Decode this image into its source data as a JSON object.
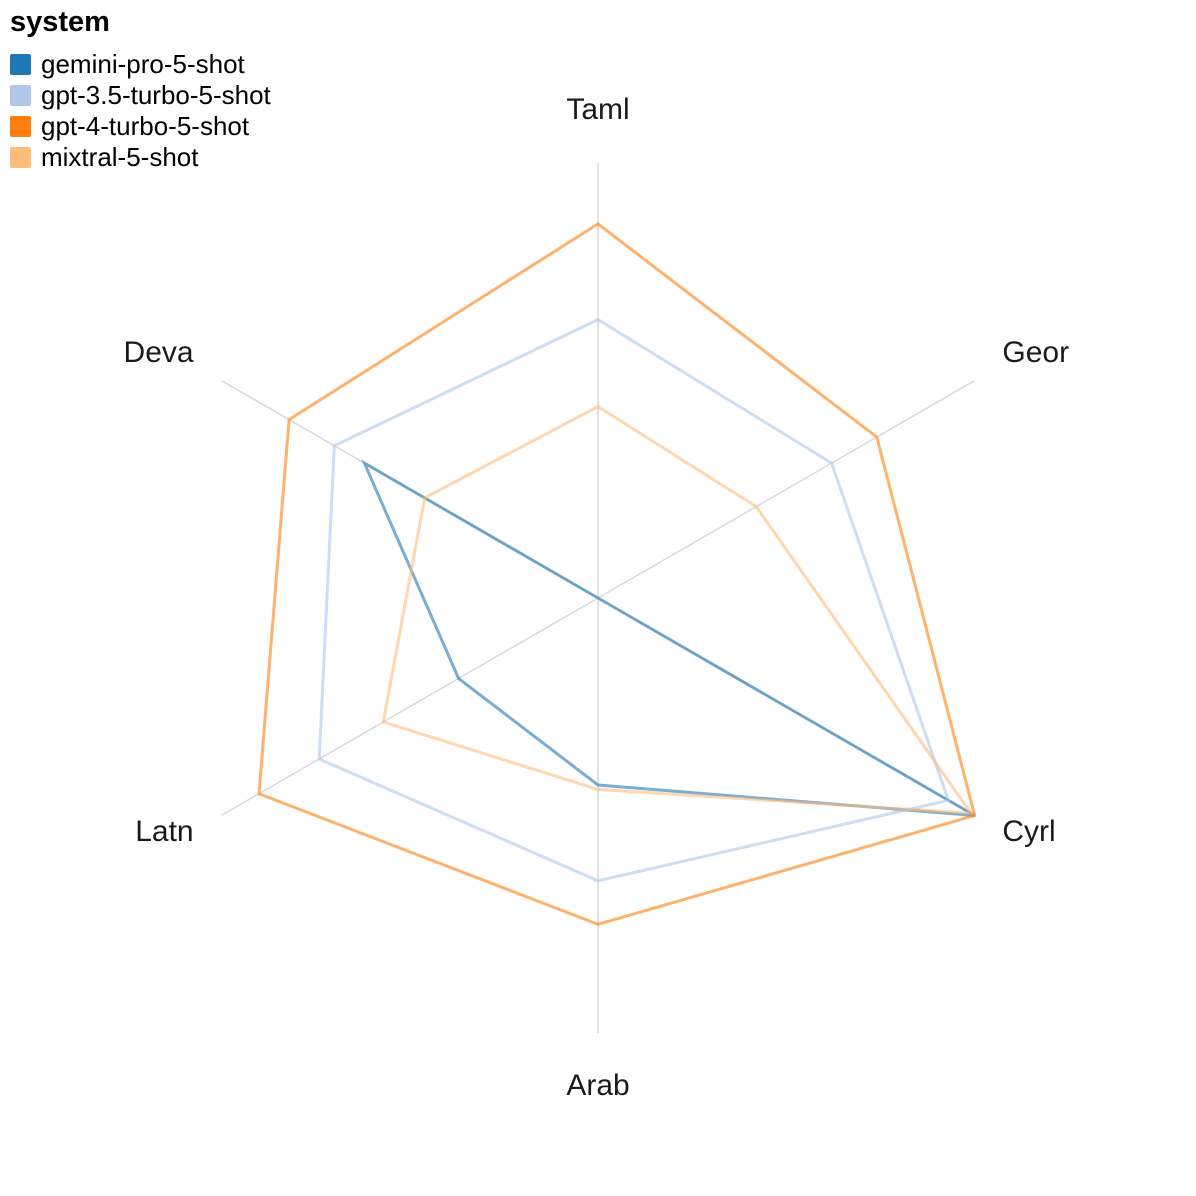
{
  "legend": {
    "title": "system",
    "items": [
      {
        "label": "gemini-pro-5-shot",
        "color": "#1f77b4"
      },
      {
        "label": "gpt-3.5-turbo-5-shot",
        "color": "#aec7e8"
      },
      {
        "label": "gpt-4-turbo-5-shot",
        "color": "#ff7f0e"
      },
      {
        "label": "mixtral-5-shot",
        "color": "#ffbb78"
      }
    ]
  },
  "chart_data": {
    "type": "radar",
    "title": "",
    "axes": [
      "Taml",
      "Geor",
      "Cyrl",
      "Arab",
      "Latn",
      "Deva"
    ],
    "series": [
      {
        "name": "gemini-pro-5-shot",
        "color": "#1f77b4",
        "values": [
          0.0,
          0.0,
          1.0,
          0.43,
          0.37,
          0.62
        ]
      },
      {
        "name": "gpt-3.5-turbo-5-shot",
        "color": "#aec7e8",
        "values": [
          0.64,
          0.62,
          0.93,
          0.65,
          0.74,
          0.7
        ]
      },
      {
        "name": "gpt-4-turbo-5-shot",
        "color": "#ff7f0e",
        "values": [
          0.86,
          0.74,
          1.0,
          0.75,
          0.9,
          0.82
        ]
      },
      {
        "name": "mixtral-5-shot",
        "color": "#ffbb78",
        "values": [
          0.44,
          0.42,
          0.99,
          0.44,
          0.57,
          0.46
        ]
      }
    ],
    "radial_range": [
      0,
      1
    ],
    "start_axis": "top",
    "direction": "clockwise",
    "grid": "radial-axes-only",
    "rings": "none",
    "legend_position": "top-left",
    "axis_color": "#d9d9d9",
    "label_color": "#1a1a1a",
    "stroke_opacity": 0.6,
    "stroke_width": 3
  }
}
